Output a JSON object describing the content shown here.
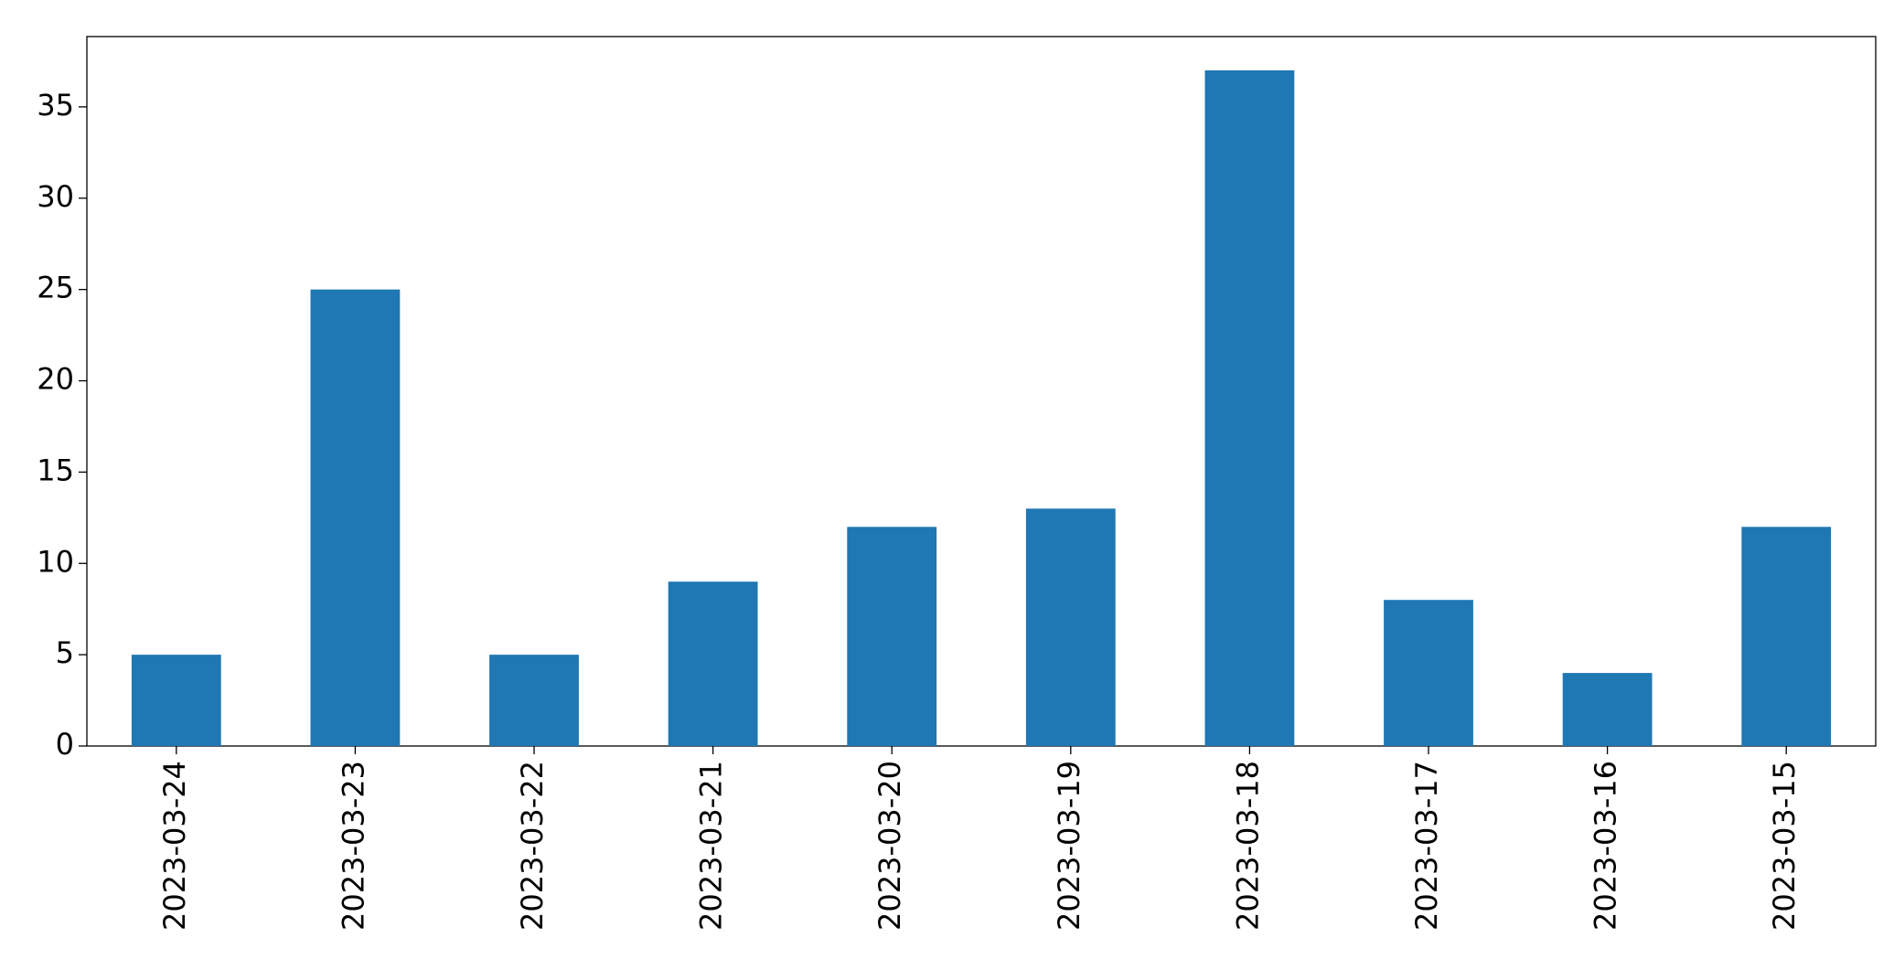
{
  "chart_data": {
    "type": "bar",
    "categories": [
      "2023-03-24",
      "2023-03-23",
      "2023-03-22",
      "2023-03-21",
      "2023-03-20",
      "2023-03-19",
      "2023-03-18",
      "2023-03-17",
      "2023-03-16",
      "2023-03-15"
    ],
    "values": [
      5,
      25,
      5,
      9,
      12,
      13,
      37,
      8,
      4,
      12
    ],
    "color": "#1f77b4",
    "ylim": [
      0,
      38.85
    ],
    "yticks": [
      0,
      5,
      10,
      15,
      20,
      25,
      30,
      35
    ],
    "grid": false
  }
}
